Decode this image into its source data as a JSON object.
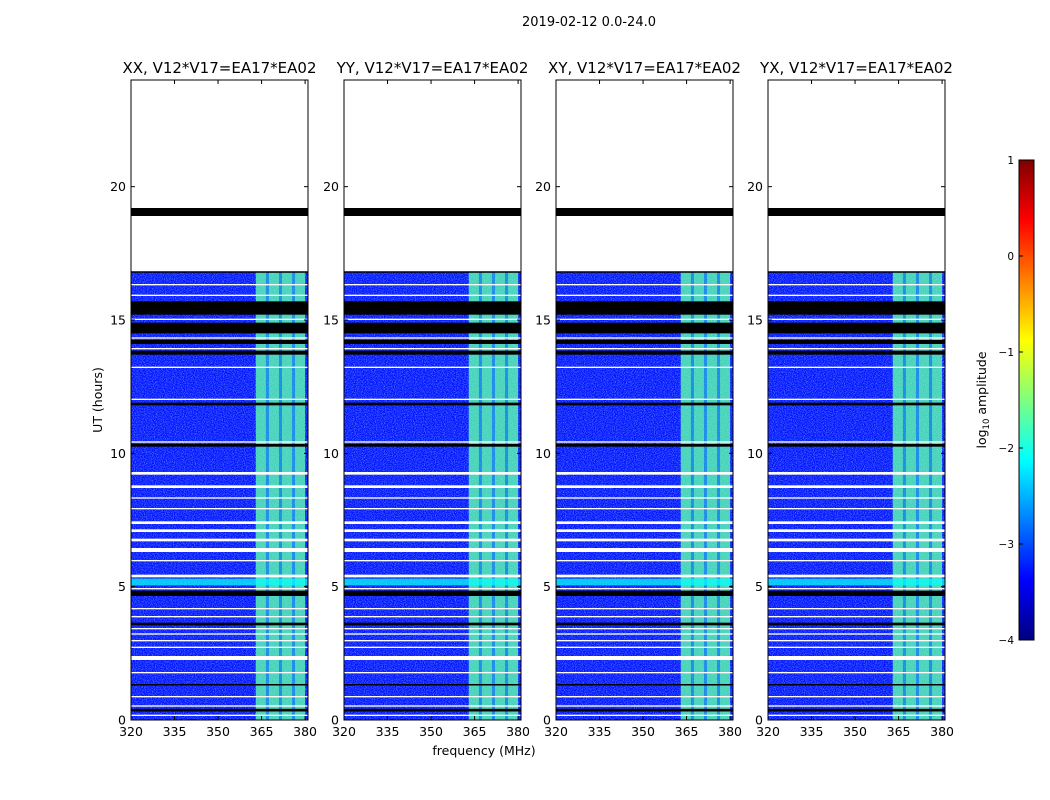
{
  "chart_data": {
    "type": "heatmap",
    "title": "2019-02-12 0.0-24.0",
    "xlabel": "frequency (MHz)",
    "ylabel": "UT (hours)",
    "xlim": [
      320,
      381
    ],
    "ylim": [
      0,
      24
    ],
    "xticks": [
      320,
      335,
      350,
      365,
      380
    ],
    "yticks": [
      0,
      5,
      10,
      15,
      20
    ],
    "colorbar": {
      "label": "log10 amplitude",
      "colormap": "jet",
      "range": [
        -4,
        1
      ],
      "ticks": [
        "1",
        "0",
        "−1",
        "−2",
        "−3",
        "−4"
      ],
      "colors": [
        "#00007f",
        "#0000ff",
        "#007fff",
        "#00ffff",
        "#7fff7f",
        "#ffff00",
        "#ff7f00",
        "#ff0000",
        "#7f0000"
      ]
    },
    "data_end_hour": 16.8,
    "background_log_amplitude": -3.3,
    "rfi_band_MHz": [
      363,
      380
    ],
    "rfi_log_amplitude": -1.7,
    "flagged_black_hours": [
      [
        18.9,
        19.2
      ],
      [
        15.2,
        15.7
      ],
      [
        14.5,
        14.9
      ],
      [
        14.1,
        14.25
      ],
      [
        13.7,
        13.85
      ],
      [
        11.8,
        11.9
      ],
      [
        10.25,
        10.35
      ],
      [
        4.65,
        4.85
      ],
      [
        3.55,
        3.65
      ],
      [
        1.3,
        1.35
      ],
      [
        0.32,
        0.42
      ]
    ],
    "gap_white_hours": [
      [
        19.2,
        19.4
      ],
      [
        17.0,
        18.9
      ],
      [
        16.8,
        17.0
      ],
      [
        16.3,
        16.35
      ],
      [
        15.9,
        15.95
      ],
      [
        15.0,
        15.05
      ],
      [
        14.3,
        14.35
      ],
      [
        13.9,
        13.95
      ],
      [
        13.2,
        13.25
      ],
      [
        12.0,
        12.05
      ],
      [
        10.4,
        10.45
      ],
      [
        9.2,
        9.3
      ],
      [
        8.7,
        8.8
      ],
      [
        8.3,
        8.35
      ],
      [
        7.9,
        7.95
      ],
      [
        7.35,
        7.45
      ],
      [
        7.05,
        7.15
      ],
      [
        6.7,
        6.8
      ],
      [
        6.3,
        6.45
      ],
      [
        5.95,
        6.0
      ],
      [
        5.35,
        5.45
      ],
      [
        4.9,
        4.95
      ],
      [
        4.15,
        4.2
      ],
      [
        3.85,
        3.9
      ],
      [
        3.4,
        3.45
      ],
      [
        3.2,
        3.25
      ],
      [
        2.95,
        3.0
      ],
      [
        2.7,
        2.75
      ],
      [
        2.25,
        2.4
      ],
      [
        1.75,
        1.8
      ],
      [
        0.85,
        0.9
      ],
      [
        0.5,
        0.55
      ],
      [
        0.15,
        0.2
      ]
    ],
    "bright_event_hours": [
      [
        5.05,
        5.3
      ]
    ],
    "panels": [
      {
        "title": "XX, V12*V17=EA17*EA02",
        "polarization": "XX"
      },
      {
        "title": "YY, V12*V17=EA17*EA02",
        "polarization": "YY"
      },
      {
        "title": "XY, V12*V17=EA17*EA02",
        "polarization": "XY"
      },
      {
        "title": "YX, V12*V17=EA17*EA02",
        "polarization": "YX"
      }
    ]
  }
}
